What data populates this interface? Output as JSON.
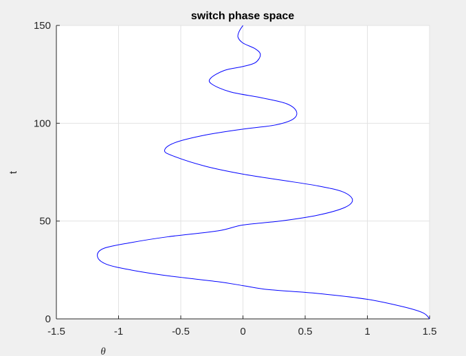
{
  "chart_data": {
    "type": "line",
    "title": "switch phase space",
    "xlabel": "θ",
    "ylabel": "t",
    "xlim": [
      -1.5,
      1.5
    ],
    "ylim": [
      0,
      150
    ],
    "x_ticks": [
      "-1.5",
      "-1",
      "-0.5",
      "0",
      "0.5",
      "1",
      "1.5"
    ],
    "y_ticks": [
      "0",
      "50",
      "100",
      "150"
    ],
    "grid": true,
    "line_color": "#0000ff",
    "background": "#f0f0f0",
    "plot_background": "#ffffff",
    "series": [
      {
        "x": [
          1.5,
          1.45,
          1.3,
          1.0,
          0.6,
          0.2,
          0.0,
          -0.2,
          -0.6,
          -0.9,
          -1.1,
          -1.17,
          -1.12,
          -0.9,
          -0.6,
          -0.2,
          0.0,
          0.3,
          0.6,
          0.82,
          0.88,
          0.8,
          0.6,
          0.3,
          0.0,
          -0.3,
          -0.55,
          -0.63,
          -0.55,
          -0.3,
          0.0,
          0.25,
          0.4,
          0.43,
          0.35,
          0.15,
          -0.1,
          -0.25,
          -0.26,
          -0.15,
          0.0,
          0.1,
          0.14,
          0.1,
          0.0,
          -0.04,
          -0.03,
          0.0
        ],
        "y": [
          0,
          3,
          6,
          10,
          13,
          15,
          17,
          19,
          22,
          25,
          28,
          32,
          36,
          39,
          42,
          45,
          48,
          50,
          53,
          57,
          61,
          65,
          68,
          71,
          74,
          78,
          83,
          86,
          90,
          94,
          97,
          99,
          102,
          106,
          110,
          113,
          116,
          120,
          123,
          127,
          129,
          131,
          135,
          138,
          141,
          144,
          147,
          150
        ]
      }
    ]
  }
}
